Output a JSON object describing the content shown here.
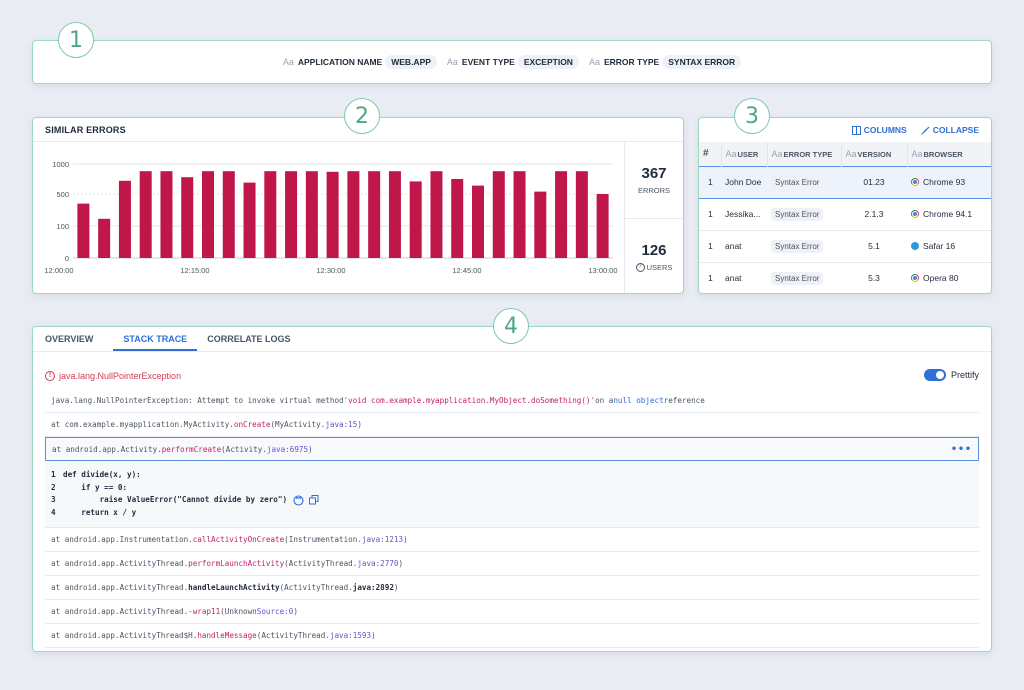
{
  "badges": [
    "1",
    "2",
    "3",
    "4"
  ],
  "filters": [
    {
      "label": "APPLICATION NAME",
      "value": "WEB.APP"
    },
    {
      "label": "EVENT TYPE",
      "value": "EXCEPTION"
    },
    {
      "label": "ERROR TYPE",
      "value": "SYNTAX ERROR"
    }
  ],
  "similar": {
    "title": "SIMILAR ERRORS",
    "errors_count": "367",
    "errors_label": "ERRORS",
    "users_count": "126",
    "users_label": "USERS"
  },
  "chart_data": {
    "type": "bar",
    "color": "#c0174a",
    "y_ticks": [
      "1000",
      "500",
      "100",
      "0"
    ],
    "y_tick_values": [
      1000,
      500,
      100,
      0
    ],
    "x_ticks": [
      "12:00:00",
      "12:15:00",
      "12:30:00",
      "12:45:00",
      "13:00:00"
    ],
    "values": [
      380,
      190,
      720,
      880,
      880,
      780,
      880,
      880,
      690,
      880,
      880,
      880,
      870,
      880,
      880,
      880,
      710,
      880,
      750,
      640,
      880,
      880,
      540,
      880,
      880,
      500
    ],
    "scale_note": "nonlinear axis with ticks 0,100,500,1000"
  },
  "table": {
    "columns_btn": "COLUMNS",
    "collapse_btn": "COLLAPSE",
    "headers": [
      "#",
      "USER",
      "ERROR TYPE",
      "VERSION",
      "BROWSER"
    ],
    "rows": [
      {
        "n": "1",
        "user": "John Doe",
        "type": "Syntax Error",
        "version": "01.23",
        "browser": "Chrome 93",
        "icon": "chrome"
      },
      {
        "n": "1",
        "user": "Jessika...",
        "type": "Syntax Error",
        "version": "2.1.3",
        "browser": "Chrome 94.1",
        "icon": "chrome"
      },
      {
        "n": "1",
        "user": "anat",
        "type": "Syntax Error",
        "version": "5.1",
        "browser": "Safar 16",
        "icon": "safari"
      },
      {
        "n": "1",
        "user": "anat",
        "type": "Syntax Error",
        "version": "5.3",
        "browser": "Opera 80",
        "icon": "chrome"
      }
    ]
  },
  "tabs": [
    "OVERVIEW",
    "STACK TRACE",
    "CORRELATE LOGS"
  ],
  "exception": "java.lang.NullPointerException",
  "prettify": "Prettify",
  "trace": {
    "l1a": "java.lang.NullPointerException: Attempt to invoke virtual method ",
    "l1b": "'void com.example.myapplication.MyObject.doSomething()'",
    "l1c": " on a ",
    "l1d": "null object",
    "l1e": " reference",
    "l2a": "at com.example.myapplication.MyActivity.",
    "l2b": "onCreate",
    "l2c": "(MyActivity.",
    "l2d": "java:15",
    "l2e": ")",
    "l3a": "at android.app.Activity.",
    "l3b": "performCreate",
    "l3c": "(Activity.",
    "l3d": "java:6975",
    "l3e": ")",
    "code": [
      {
        "n": "1",
        "t": "def divide(x, y):"
      },
      {
        "n": "2",
        "t": "    if y == 0:"
      },
      {
        "n": "3",
        "t": "        raise ValueError(\"Cannot divide by zero\")"
      },
      {
        "n": "4",
        "t": "    return x / y"
      }
    ],
    "l4a": "at android.app.Instrumentation.",
    "l4b": "callActivityOnCreate",
    "l4c": "(Instrumentation.",
    "l4d": "java:1213",
    "l4e": ")",
    "l5a": "at android.app.ActivityThread.",
    "l5b": "performLaunchActivity",
    "l5c": "(ActivityThread.",
    "l5d": "java:2770",
    "l5e": ")",
    "l6a": "at android.app.ActivityThread.",
    "l6b": "handleLaunchActivity",
    "l6c": "(ActivityThread.",
    "l6d": "java:2892",
    "l6e": ")",
    "l7a": "at android.app.ActivityThread.",
    "l7b": "-wrap11",
    "l7c": "(Unknown ",
    "l7d": "Source:0",
    "l7e": ")",
    "l8a": "at android.app.ActivityThread$H.",
    "l8b": "handleMessage",
    "l8c": "(ActivityThread.",
    "l8d": "java:1593",
    "l8e": ")"
  }
}
